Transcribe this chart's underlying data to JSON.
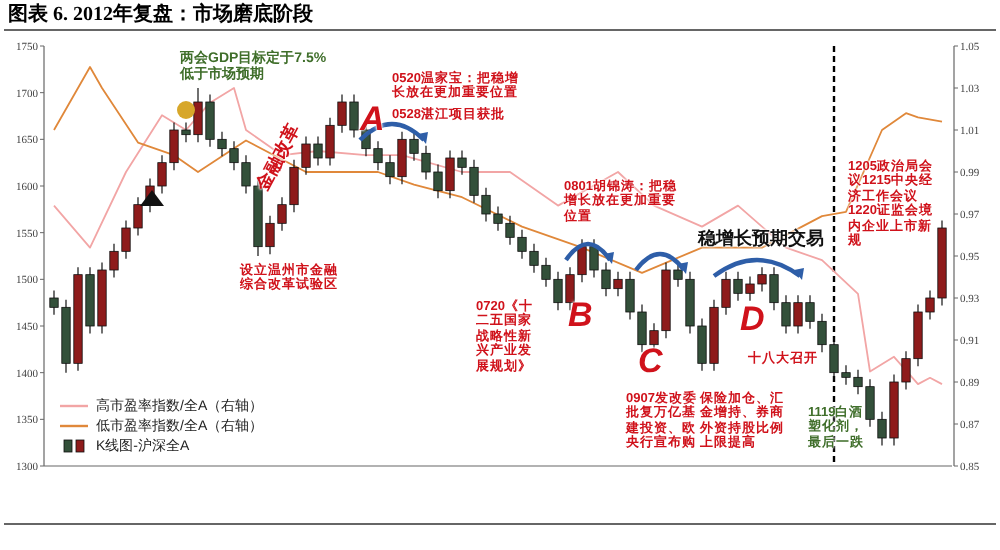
{
  "chart_data": {
    "type": "candlestick",
    "title": "图表 6. 2012年复盘：市场磨底阶段",
    "categories": [
      null,
      null,
      null,
      null,
      null,
      null,
      null,
      null,
      null,
      null,
      null,
      null,
      null,
      null,
      null,
      null,
      null,
      null,
      null,
      null,
      null,
      null,
      null,
      null,
      null,
      null,
      null,
      null,
      null,
      null,
      null,
      null,
      null,
      null,
      null,
      null,
      null,
      null,
      null,
      null,
      null,
      null,
      null,
      null,
      null,
      null,
      null,
      null,
      null,
      null,
      null,
      null,
      null,
      null,
      null,
      null,
      null,
      null,
      null,
      null,
      null,
      null,
      null,
      null,
      null,
      null,
      null,
      null,
      null,
      null,
      null,
      null,
      null,
      null,
      null
    ],
    "series": [
      {
        "name": "高市盈率指数/全A（右轴）",
        "type": "line",
        "axis": "y2",
        "color": "#f2a5a5",
        "values": [
          0.974,
          null,
          null,
          0.954,
          null,
          null,
          0.99,
          null,
          null,
          1.017,
          null,
          1.01,
          null,
          1.023,
          null,
          1.03,
          1.01,
          null,
          null,
          0.998,
          null,
          null,
          1.0,
          null,
          null,
          null,
          0.998,
          null,
          null,
          0.998,
          null,
          null,
          null,
          null,
          0.99,
          null,
          null,
          null,
          0.99,
          null,
          null,
          null,
          0.974,
          null,
          null,
          null,
          null,
          0.99,
          null,
          null,
          0.974,
          null,
          null,
          null,
          0.964,
          null,
          null,
          0.974,
          null,
          null,
          null,
          0.954,
          null,
          null,
          0.948,
          null,
          null,
          0.932,
          0.895,
          null,
          0.902,
          null,
          0.889,
          0.892,
          0.889
        ]
      },
      {
        "name": "低市盈率指数/全A（右轴）",
        "type": "line",
        "axis": "y2",
        "color": "#e0883a",
        "values": [
          1.01,
          null,
          null,
          1.04,
          1.03,
          null,
          null,
          1.004,
          null,
          null,
          0.998,
          null,
          0.99,
          null,
          null,
          null,
          1.005,
          null,
          null,
          null,
          null,
          0.99,
          null,
          null,
          null,
          null,
          null,
          0.99,
          null,
          null,
          0.984,
          null,
          null,
          null,
          0.978,
          null,
          null,
          null,
          null,
          0.964,
          null,
          null,
          null,
          null,
          0.954,
          null,
          null,
          null,
          null,
          0.942,
          null,
          null,
          null,
          null,
          0.954,
          null,
          null,
          null,
          null,
          0.954,
          null,
          null,
          null,
          null,
          0.969,
          null,
          0.971,
          null,
          null,
          1.01,
          null,
          1.018,
          1.016,
          null,
          1.014
        ]
      },
      {
        "name": "K线图-沪深全A",
        "type": "candlestick",
        "colors": [
          "#33503a",
          "#33503a",
          "#8e1b1b",
          "#33503a",
          "#8e1b1b",
          "#8e1b1b",
          "#8e1b1b",
          "#8e1b1b",
          "#8e1b1b",
          "#8e1b1b",
          "#8e1b1b",
          "#33503a",
          "#8e1b1b",
          "#33503a",
          "#33503a",
          "#33503a",
          "#33503a",
          "#33503a",
          "#8e1b1b",
          "#8e1b1b",
          "#8e1b1b",
          "#8e1b1b",
          "#33503a",
          "#8e1b1b",
          "#8e1b1b",
          "#33503a",
          "#33503a",
          "#33503a",
          "#33503a",
          "#8e1b1b",
          "#33503a",
          "#33503a",
          "#33503a",
          "#8e1b1b",
          "#33503a",
          "#33503a",
          "#33503a",
          "#33503a",
          "#33503a",
          "#33503a",
          "#33503a",
          "#33503a",
          "#33503a",
          "#8e1b1b",
          "#8e1b1b",
          "#33503a",
          "#33503a",
          "#8e1b1b",
          "#33503a",
          "#33503a",
          "#8e1b1b",
          "#8e1b1b",
          "#33503a",
          "#33503a",
          "#33503a",
          "#8e1b1b",
          "#8e1b1b",
          "#33503a",
          "#8e1b1b",
          "#8e1b1b",
          "#33503a",
          "#33503a",
          "#8e1b1b",
          "#33503a",
          "#33503a",
          "#33503a",
          "#33503a",
          "#33503a",
          "#33503a",
          "#33503a",
          "#8e1b1b",
          "#8e1b1b",
          "#8e1b1b",
          "#8e1b1b",
          "#8e1b1b"
        ],
        "ohlc": [
          [
            1480,
            1488,
            1462,
            1470
          ],
          [
            1470,
            1478,
            1400,
            1410
          ],
          [
            1410,
            1513,
            1402,
            1505
          ],
          [
            1505,
            1513,
            1442,
            1450
          ],
          [
            1450,
            1518,
            1442,
            1510
          ],
          [
            1510,
            1538,
            1502,
            1530
          ],
          [
            1530,
            1563,
            1522,
            1555
          ],
          [
            1555,
            1588,
            1547,
            1580
          ],
          [
            1580,
            1608,
            1572,
            1600
          ],
          [
            1600,
            1633,
            1592,
            1625
          ],
          [
            1625,
            1668,
            1617,
            1660
          ],
          [
            1660,
            1668,
            1647,
            1655
          ],
          [
            1655,
            1705,
            1647,
            1690
          ],
          [
            1690,
            1698,
            1642,
            1650
          ],
          [
            1650,
            1658,
            1632,
            1640
          ],
          [
            1640,
            1648,
            1617,
            1625
          ],
          [
            1625,
            1633,
            1592,
            1600
          ],
          [
            1600,
            1608,
            1525,
            1535
          ],
          [
            1535,
            1568,
            1527,
            1560
          ],
          [
            1560,
            1588,
            1552,
            1580
          ],
          [
            1580,
            1628,
            1572,
            1620
          ],
          [
            1620,
            1653,
            1612,
            1645
          ],
          [
            1645,
            1653,
            1622,
            1630
          ],
          [
            1630,
            1673,
            1622,
            1665
          ],
          [
            1665,
            1698,
            1657,
            1690
          ],
          [
            1690,
            1698,
            1652,
            1660
          ],
          [
            1660,
            1668,
            1632,
            1640
          ],
          [
            1640,
            1648,
            1617,
            1625
          ],
          [
            1625,
            1633,
            1602,
            1610
          ],
          [
            1610,
            1658,
            1602,
            1650
          ],
          [
            1650,
            1658,
            1627,
            1635
          ],
          [
            1635,
            1643,
            1607,
            1615
          ],
          [
            1615,
            1623,
            1587,
            1595
          ],
          [
            1595,
            1638,
            1587,
            1630
          ],
          [
            1630,
            1638,
            1612,
            1620
          ],
          [
            1620,
            1628,
            1582,
            1590
          ],
          [
            1590,
            1598,
            1562,
            1570
          ],
          [
            1570,
            1578,
            1552,
            1560
          ],
          [
            1560,
            1568,
            1537,
            1545
          ],
          [
            1545,
            1553,
            1522,
            1530
          ],
          [
            1530,
            1538,
            1507,
            1515
          ],
          [
            1515,
            1523,
            1492,
            1500
          ],
          [
            1500,
            1508,
            1467,
            1475
          ],
          [
            1475,
            1513,
            1467,
            1505
          ],
          [
            1505,
            1543,
            1497,
            1535
          ],
          [
            1535,
            1543,
            1502,
            1510
          ],
          [
            1510,
            1518,
            1482,
            1490
          ],
          [
            1490,
            1508,
            1482,
            1500
          ],
          [
            1500,
            1508,
            1457,
            1465
          ],
          [
            1465,
            1473,
            1422,
            1430
          ],
          [
            1430,
            1453,
            1422,
            1445
          ],
          [
            1445,
            1518,
            1437,
            1510
          ],
          [
            1510,
            1518,
            1492,
            1500
          ],
          [
            1500,
            1508,
            1442,
            1450
          ],
          [
            1450,
            1458,
            1402,
            1410
          ],
          [
            1410,
            1478,
            1402,
            1470
          ],
          [
            1470,
            1508,
            1462,
            1500
          ],
          [
            1500,
            1508,
            1477,
            1485
          ],
          [
            1485,
            1503,
            1477,
            1495
          ],
          [
            1495,
            1513,
            1487,
            1505
          ],
          [
            1505,
            1513,
            1467,
            1475
          ],
          [
            1475,
            1483,
            1442,
            1450
          ],
          [
            1450,
            1483,
            1442,
            1475
          ],
          [
            1475,
            1483,
            1447,
            1455
          ],
          [
            1455,
            1463,
            1422,
            1430
          ],
          [
            1430,
            1438,
            1392,
            1400
          ],
          [
            1400,
            1408,
            1387,
            1395
          ],
          [
            1395,
            1403,
            1377,
            1385
          ],
          [
            1385,
            1393,
            1342,
            1350
          ],
          [
            1350,
            1358,
            1322,
            1330
          ],
          [
            1330,
            1398,
            1322,
            1390
          ],
          [
            1390,
            1423,
            1382,
            1415
          ],
          [
            1415,
            1473,
            1407,
            1465
          ],
          [
            1465,
            1488,
            1457,
            1480
          ],
          [
            1480,
            1563,
            1472,
            1555
          ]
        ]
      }
    ],
    "ylim": [
      1300,
      1750
    ],
    "yticks": [
      1300,
      1350,
      1400,
      1450,
      1500,
      1550,
      1600,
      1650,
      1700,
      1750
    ],
    "y2lim": [
      0.85,
      1.05
    ],
    "y2ticks": [
      0.85,
      0.87,
      0.89,
      0.91,
      0.93,
      0.95,
      0.97,
      0.99,
      1.01,
      1.03,
      1.05
    ],
    "tick_labels": "y",
    "legend": "bottom left",
    "annotations": [
      "两会GDP目标定于7.5%低于市场预期",
      "0520温家宝：把稳增长放在更加重要位置",
      "0528湛江项目获批",
      "A",
      "B",
      "C",
      "D",
      "金融改革",
      "设立温州市金融综合改革试验区",
      "0720《十二五国家战略性新兴产业发展规划》",
      "0801胡锦涛：把稳增长放在更加重要位置",
      "0907发改委批复万亿基建投资、欧央行宣布购",
      "保险加仓、汇金增持、券商外资持股比例上限提高",
      "稳增长预期交易",
      "十八大召开",
      "1119白酒塑化剂，最后一跌",
      "1205政治局会议1215中央经济工作会议1220证监会境内企业上市新规"
    ]
  }
}
